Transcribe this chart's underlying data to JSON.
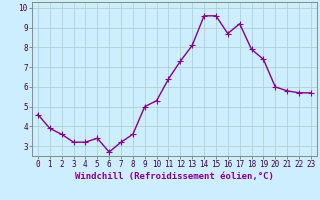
{
  "x": [
    0,
    1,
    2,
    3,
    4,
    5,
    6,
    7,
    8,
    9,
    10,
    11,
    12,
    13,
    14,
    15,
    16,
    17,
    18,
    19,
    20,
    21,
    22,
    23
  ],
  "y": [
    4.6,
    3.9,
    3.6,
    3.2,
    3.2,
    3.4,
    2.7,
    3.2,
    3.6,
    5.0,
    5.3,
    6.4,
    7.3,
    8.1,
    9.6,
    9.6,
    8.7,
    9.2,
    7.9,
    7.4,
    6.0,
    5.8,
    5.7,
    5.7
  ],
  "line_color": "#880088",
  "marker": "+",
  "marker_size": 4,
  "marker_linewidth": 0.8,
  "background_color": "#cceeff",
  "grid_color": "#aacccc",
  "xlabel": "Windchill (Refroidissement éolien,°C)",
  "xlabel_fontsize": 6.5,
  "ylim": [
    2.5,
    10.3
  ],
  "xlim": [
    -0.5,
    23.5
  ],
  "yticks": [
    3,
    4,
    5,
    6,
    7,
    8,
    9,
    10
  ],
  "ytick_labels": [
    "3",
    "4",
    "5",
    "6",
    "7",
    "8",
    "9",
    "10"
  ],
  "xtick_labels": [
    "0",
    "1",
    "2",
    "3",
    "4",
    "5",
    "6",
    "7",
    "8",
    "9",
    "10",
    "11",
    "12",
    "13",
    "14",
    "15",
    "16",
    "17",
    "18",
    "19",
    "20",
    "21",
    "22",
    "23"
  ],
  "tick_fontsize": 5.5,
  "linewidth": 1.0
}
